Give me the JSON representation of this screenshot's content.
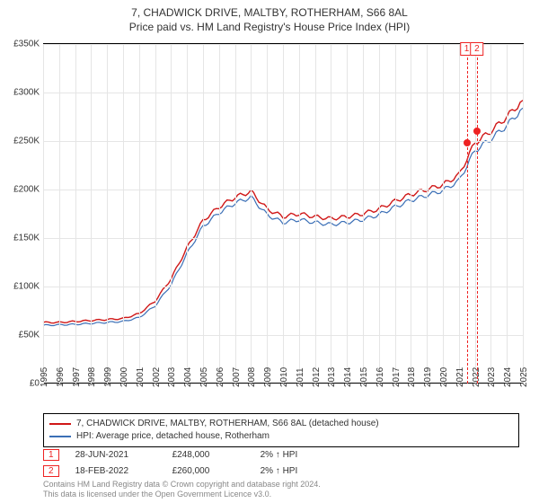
{
  "title": {
    "line1": "7, CHADWICK DRIVE, MALTBY, ROTHERHAM, S66 8AL",
    "line2": "Price paid vs. HM Land Registry's House Price Index (HPI)"
  },
  "chart": {
    "type": "line",
    "x_years": [
      1995,
      1996,
      1997,
      1998,
      1999,
      2000,
      2001,
      2002,
      2003,
      2004,
      2005,
      2006,
      2007,
      2008,
      2009,
      2010,
      2011,
      2012,
      2013,
      2014,
      2015,
      2016,
      2017,
      2018,
      2019,
      2020,
      2021,
      2022,
      2023,
      2024,
      2025
    ],
    "y_ticks": [
      0,
      50000,
      100000,
      150000,
      200000,
      250000,
      300000,
      350000
    ],
    "y_tick_labels": [
      "£0",
      "£50K",
      "£100K",
      "£150K",
      "£200K",
      "£250K",
      "£300K",
      "£350K"
    ],
    "ylim": [
      0,
      350000
    ],
    "background_color": "#ffffff",
    "grid_color": "#e5e5e5",
    "axis_color": "#000000",
    "label_fontsize": 10,
    "series": [
      {
        "name": "7, CHADWICK DRIVE, MALTBY, ROTHERHAM, S66 8AL (detached house)",
        "color": "#d01818",
        "line_width": 1.4,
        "data": [
          63000,
          63000,
          64000,
          65000,
          66000,
          67000,
          72000,
          85000,
          108000,
          140000,
          168000,
          182000,
          192000,
          198000,
          180000,
          172000,
          175000,
          172000,
          170000,
          172000,
          175000,
          180000,
          188000,
          195000,
          200000,
          205000,
          215000,
          248000,
          260000,
          275000,
          292000
        ]
      },
      {
        "name": "HPI: Average price, detached house, Rotherham",
        "color": "#3b6fb6",
        "line_width": 1.2,
        "data": [
          60000,
          60500,
          61000,
          62000,
          63000,
          64000,
          68000,
          80000,
          102000,
          134000,
          162000,
          176000,
          186000,
          192000,
          174000,
          166000,
          169000,
          166000,
          164000,
          166000,
          169000,
          174000,
          182000,
          189000,
          194000,
          199000,
          209000,
          240000,
          252000,
          266000,
          284000
        ]
      }
    ],
    "markers": [
      {
        "label": "1",
        "year_frac": 2021.49,
        "value": 248000
      },
      {
        "label": "2",
        "year_frac": 2022.13,
        "value": 260000
      }
    ]
  },
  "legend": {
    "items": [
      {
        "color": "#d01818",
        "text": "7, CHADWICK DRIVE, MALTBY, ROTHERHAM, S66 8AL (detached house)"
      },
      {
        "color": "#3b6fb6",
        "text": "HPI: Average price, detached house, Rotherham"
      }
    ]
  },
  "sales": [
    {
      "badge": "1",
      "date": "28-JUN-2021",
      "price": "£248,000",
      "delta": "2% ↑ HPI"
    },
    {
      "badge": "2",
      "date": "18-FEB-2022",
      "price": "£260,000",
      "delta": "2% ↑ HPI"
    }
  ],
  "footer": {
    "line1": "Contains HM Land Registry data © Crown copyright and database right 2024.",
    "line2": "This data is licensed under the Open Government Licence v3.0."
  }
}
